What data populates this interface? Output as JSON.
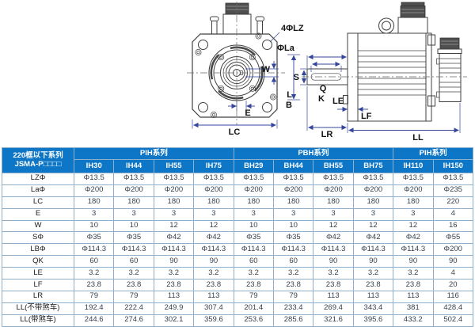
{
  "drawing": {
    "labels": {
      "bolt_holes": "4ΦLZ",
      "flange_circle": "ΦLa",
      "lb_line1": "L",
      "lb_line2": "B",
      "keyway_width": "W",
      "offset": "E",
      "frame_width": "LC",
      "shaft_diameter": "S",
      "keyway_length": "Q",
      "shaft_key": "K",
      "pilot_depth": "LE",
      "flange_thickness": "LF",
      "shaft_length": "LR",
      "body_length": "LL"
    }
  },
  "table": {
    "corner_header_line1": "220框以下系列",
    "corner_header_line2": "JSMA-P□□□□",
    "groups": [
      {
        "label": "PIH系列",
        "span": 4
      },
      {
        "label": "PBH系列",
        "span": 4
      },
      {
        "label": "PIH系列",
        "span": 2
      }
    ],
    "models": [
      "IH30",
      "IH44",
      "IH55",
      "IH75",
      "BH29",
      "BH44",
      "BH55",
      "BH75",
      "IH110",
      "IH150"
    ],
    "rows": [
      {
        "label": "LZΦ",
        "values": [
          "Φ13.5",
          "Φ13.5",
          "Φ13.5",
          "Φ13.5",
          "Φ13.5",
          "Φ13.5",
          "Φ13.5",
          "Φ13.5",
          "Φ13.5",
          "Φ13.5"
        ]
      },
      {
        "label": "LaΦ",
        "values": [
          "Φ200",
          "Φ200",
          "Φ200",
          "Φ200",
          "Φ200",
          "Φ200",
          "Φ200",
          "Φ200",
          "Φ200",
          "Φ235"
        ]
      },
      {
        "label": "LC",
        "values": [
          "180",
          "180",
          "180",
          "180",
          "180",
          "180",
          "180",
          "180",
          "180",
          "220"
        ]
      },
      {
        "label": "E",
        "values": [
          "3",
          "3",
          "3",
          "3",
          "3",
          "3",
          "3",
          "3",
          "3",
          "4"
        ]
      },
      {
        "label": "W",
        "values": [
          "10",
          "10",
          "12",
          "12",
          "10",
          "10",
          "12",
          "12",
          "12",
          "16"
        ]
      },
      {
        "label": "SΦ",
        "values": [
          "Φ35",
          "Φ35",
          "Φ42",
          "Φ42",
          "Φ35",
          "Φ35",
          "Φ42",
          "Φ42",
          "Φ42",
          "Φ55"
        ]
      },
      {
        "label": "LBΦ",
        "values": [
          "Φ114.3",
          "Φ114.3",
          "Φ114.3",
          "Φ114.3",
          "Φ114.3",
          "Φ114.3",
          "Φ114.3",
          "Φ114.3",
          "Φ114.3",
          "Φ200"
        ]
      },
      {
        "label": "QK",
        "values": [
          "60",
          "60",
          "90",
          "90",
          "60",
          "60",
          "90",
          "90",
          "90",
          "90"
        ]
      },
      {
        "label": "LE",
        "values": [
          "3.2",
          "3.2",
          "3.2",
          "3.2",
          "3.2",
          "3.2",
          "3.2",
          "3.2",
          "3.2",
          "4"
        ]
      },
      {
        "label": "LF",
        "values": [
          "23.8",
          "23.8",
          "23.8",
          "23.8",
          "23.8",
          "23.8",
          "23.8",
          "23.8",
          "23.8",
          "20"
        ]
      },
      {
        "label": "LR",
        "values": [
          "79",
          "79",
          "113",
          "113",
          "79",
          "79",
          "113",
          "113",
          "113",
          "116"
        ]
      },
      {
        "label": "LL(不带煞车)",
        "values": [
          "192.4",
          "222.4",
          "249.9",
          "307.4",
          "201.4",
          "233.4",
          "269.4",
          "343.4",
          "381",
          "428.4"
        ]
      },
      {
        "label": "LL(带煞车)",
        "values": [
          "244.6",
          "274.6",
          "302.1",
          "359.6",
          "253.6",
          "285.6",
          "321.6",
          "395.6",
          "433.2",
          "502.4"
        ]
      }
    ]
  },
  "colors": {
    "header_blue": "#0d76c6",
    "grid_line": "#8fb0cc",
    "table_border": "#7aa0c0",
    "dimension_blue": "#34459c",
    "cell_text": "#37424e",
    "drawing_stroke": "#404040"
  }
}
